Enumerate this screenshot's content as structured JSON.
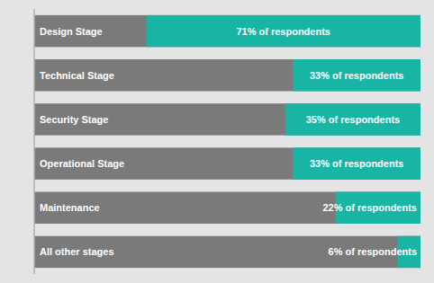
{
  "chart_data": {
    "type": "bar",
    "orientation": "horizontal",
    "categories": [
      "Design Stage",
      "Technical Stage",
      "Security Stage",
      "Operational Stage",
      "Maintenance",
      "All other stages"
    ],
    "values": [
      71,
      33,
      35,
      33,
      22,
      6
    ],
    "value_labels": [
      "71% of respondents",
      "33% of respondents",
      "35% of respondents",
      "33% of respondents",
      "22% of respondents",
      "6% of respondents"
    ],
    "data_labels": true,
    "color": "#18b4a4",
    "xlim": [
      0,
      100
    ],
    "grid": false,
    "tick_labels": false
  }
}
